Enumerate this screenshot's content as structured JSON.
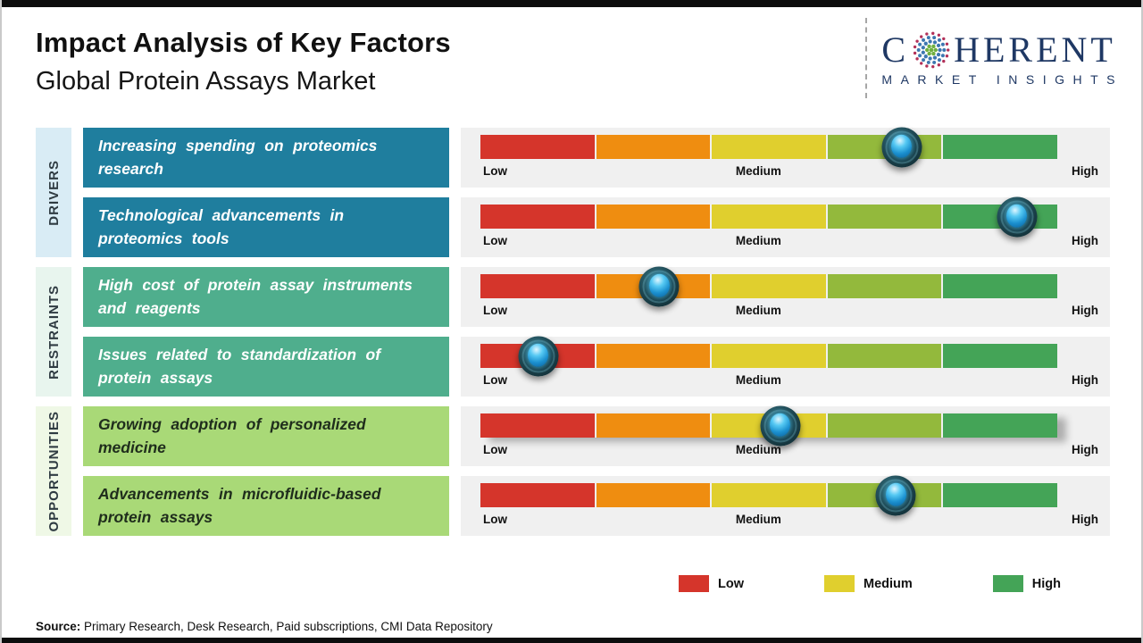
{
  "page": {
    "title": "Impact Analysis of Key Factors",
    "subtitle": "Global Protein Assays Market",
    "source_label": "Source:",
    "source_text": " Primary Research, Desk Research, Paid subscriptions, CMI Data Repository"
  },
  "logo": {
    "brand_prefix": "C",
    "brand_suffix": "HERENT",
    "brand_subtitle": "MARKET INSIGHTS",
    "globe_icon": "dotted-globe-icon",
    "globe_rings": [
      {
        "r": 0,
        "n": 1,
        "dot": 3.2,
        "color": "#6faf3f"
      },
      {
        "r": 6.5,
        "n": 6,
        "dot": 3.0,
        "color": "#6faf3f"
      },
      {
        "r": 13,
        "n": 11,
        "dot": 2.9,
        "color": "#3d77b0"
      },
      {
        "r": 19.5,
        "n": 14,
        "dot": 2.7,
        "color": "#3d77b0"
      },
      {
        "r": 25.5,
        "n": 17,
        "dot": 2.3,
        "color": "#b23058"
      }
    ]
  },
  "colors": {
    "low": "#d5352b",
    "low-med": "#ef8d10",
    "medium": "#e0cf2e",
    "med-high": "#93b93c",
    "high": "#44a457",
    "brand-navy": "#1f3864",
    "panel-bg": "#f0f0f0",
    "drivers-box": "#1f7e9e",
    "restraints-box": "#4fae8d",
    "opportunities-box": "#a9d977",
    "drivers-side": "#d9ecf5",
    "restraints-side": "#e8f5ee",
    "opportunities-side": "#eff8e6"
  },
  "groups": [
    {
      "label": "DRIVERS"
    },
    {
      "label": "RESTRAINTS"
    },
    {
      "label": "OPPORTUNITIES"
    }
  ],
  "chart_data": {
    "type": "bar",
    "title": "Impact Analysis of Key Factors",
    "subtitle": "Global Protein Assays Market",
    "orientation": "horizontal",
    "scale": {
      "min_label": "Low",
      "mid_label": "Medium",
      "max_label": "High",
      "range_pct": [
        0,
        100
      ]
    },
    "segment_colors": [
      "#d5352b",
      "#ef8d10",
      "#e0cf2e",
      "#93b93c",
      "#44a457"
    ],
    "legend": [
      "Low",
      "Medium",
      "High"
    ],
    "legend_position": "bottom",
    "series": [
      {
        "group": "Drivers",
        "factor": "Increasing spending on proteomics research",
        "impact_pct": 73,
        "impact_level": "Medium-High"
      },
      {
        "group": "Drivers",
        "factor": "Technological advancements in proteomics tools",
        "impact_pct": 93,
        "impact_level": "High"
      },
      {
        "group": "Restraints",
        "factor": "High cost of protein assay instruments and reagents",
        "impact_pct": 31,
        "impact_level": "Low-Medium"
      },
      {
        "group": "Restraints",
        "factor": "Issues related to standardization of protein assays",
        "impact_pct": 10,
        "impact_level": "Low"
      },
      {
        "group": "Opportunities",
        "factor": "Growing adoption of personalized medicine",
        "impact_pct": 52,
        "impact_level": "Medium"
      },
      {
        "group": "Opportunities",
        "factor": "Advancements in microfluidic-based protein assays",
        "impact_pct": 72,
        "impact_level": "Medium-High"
      }
    ]
  },
  "legend": {
    "items": [
      {
        "label": "Low"
      },
      {
        "label": "Medium"
      },
      {
        "label": "High"
      }
    ]
  }
}
